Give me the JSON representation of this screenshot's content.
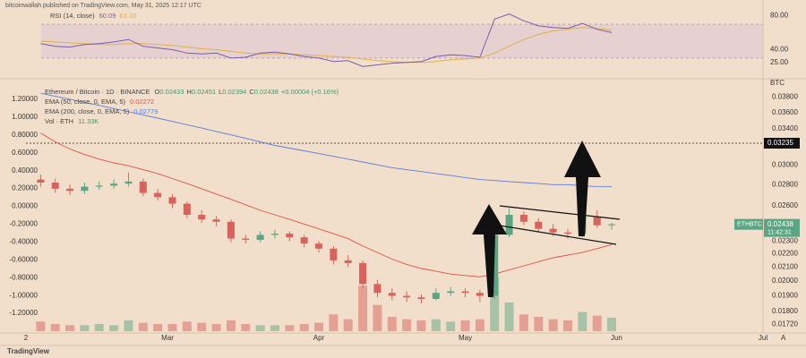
{
  "chart_data": {
    "type": "candlestick",
    "header": "bitcoinwallah published on TradingView.com, May 31, 2025 12:17 UTC",
    "footer": "TradingView",
    "symbol": "Ethereum / Bitcoin · 1D · BINANCE",
    "ohlc_labels": [
      "O",
      "H",
      "L",
      "C"
    ],
    "change_label": "+0.00004 (+0.16%)",
    "currency": "BTC",
    "scale_mode": "A",
    "pair_label": "ETHBTC",
    "countdown": "11:42:31",
    "log_scale": true,
    "up_color": "#5aa583",
    "down_color": "#d9625c",
    "x": [
      0,
      3,
      6,
      9,
      12,
      15,
      18,
      21,
      24,
      27,
      30,
      33,
      36,
      39,
      42,
      45,
      48,
      51,
      54,
      57,
      60,
      63,
      66,
      69,
      72,
      75,
      78,
      81,
      84,
      87,
      90,
      93,
      96,
      99,
      102,
      105,
      108,
      111,
      114,
      117
    ],
    "xlim": [
      -3,
      148
    ],
    "xticks": [
      {
        "value": -3,
        "label": "2"
      },
      {
        "value": 26,
        "label": "Mar"
      },
      {
        "value": 57,
        "label": "Apr"
      },
      {
        "value": 87,
        "label": "May"
      },
      {
        "value": 118,
        "label": "Jun"
      },
      {
        "value": 148,
        "label": "Jul"
      }
    ],
    "candles": [
      [
        0.0285,
        0.029,
        0.0278,
        0.0282
      ],
      [
        0.0282,
        0.0286,
        0.0272,
        0.0276
      ],
      [
        0.0276,
        0.028,
        0.027,
        0.0274
      ],
      [
        0.0274,
        0.0282,
        0.0271,
        0.0278
      ],
      [
        0.0278,
        0.0283,
        0.0275,
        0.0279
      ],
      [
        0.0279,
        0.0285,
        0.0276,
        0.0281
      ],
      [
        0.0281,
        0.0292,
        0.0278,
        0.0283
      ],
      [
        0.0283,
        0.0286,
        0.0269,
        0.0272
      ],
      [
        0.0272,
        0.0276,
        0.0265,
        0.0268
      ],
      [
        0.0268,
        0.0271,
        0.0258,
        0.0262
      ],
      [
        0.0262,
        0.0264,
        0.0249,
        0.0252
      ],
      [
        0.0252,
        0.0256,
        0.0245,
        0.0248
      ],
      [
        0.0248,
        0.0251,
        0.0242,
        0.0246
      ],
      [
        0.0246,
        0.0248,
        0.0229,
        0.0232
      ],
      [
        0.0232,
        0.0235,
        0.0228,
        0.0231
      ],
      [
        0.0231,
        0.0238,
        0.0229,
        0.0235
      ],
      [
        0.0235,
        0.0239,
        0.0232,
        0.0236
      ],
      [
        0.0236,
        0.0238,
        0.023,
        0.0233
      ],
      [
        0.0233,
        0.0235,
        0.0225,
        0.0228
      ],
      [
        0.0228,
        0.023,
        0.0221,
        0.0224
      ],
      [
        0.0224,
        0.0226,
        0.0212,
        0.0215
      ],
      [
        0.0215,
        0.0219,
        0.021,
        0.0213
      ],
      [
        0.0213,
        0.0215,
        0.0195,
        0.0198
      ],
      [
        0.0198,
        0.0201,
        0.0189,
        0.0192
      ],
      [
        0.0192,
        0.0195,
        0.0187,
        0.019
      ],
      [
        0.019,
        0.0193,
        0.0186,
        0.0189
      ],
      [
        0.0189,
        0.0191,
        0.0185,
        0.0188
      ],
      [
        0.0188,
        0.0195,
        0.0187,
        0.0192
      ],
      [
        0.0192,
        0.0196,
        0.019,
        0.0193
      ],
      [
        0.0193,
        0.0195,
        0.0189,
        0.0192
      ],
      [
        0.0192,
        0.0194,
        0.0186,
        0.019
      ],
      [
        0.019,
        0.0238,
        0.0188,
        0.0235
      ],
      [
        0.0235,
        0.0258,
        0.0233,
        0.0252
      ],
      [
        0.0252,
        0.0255,
        0.0243,
        0.0246
      ],
      [
        0.0246,
        0.0249,
        0.0237,
        0.024
      ],
      [
        0.024,
        0.0244,
        0.0234,
        0.0237
      ],
      [
        0.0237,
        0.024,
        0.0232,
        0.0236
      ],
      [
        0.0236,
        0.0253,
        0.0233,
        0.025
      ],
      [
        0.025,
        0.0256,
        0.0241,
        0.0243
      ],
      [
        0.02433,
        0.02451,
        0.02394,
        0.02438
      ]
    ],
    "series": [
      {
        "name": "EMA (50, close, 0, EMA, 5)",
        "color": "#e0504a",
        "values": [
          0.0335,
          0.0325,
          0.0317,
          0.0311,
          0.0306,
          0.0302,
          0.0299,
          0.0295,
          0.0291,
          0.0286,
          0.0281,
          0.0276,
          0.0271,
          0.0266,
          0.0261,
          0.0256,
          0.0252,
          0.0248,
          0.0244,
          0.024,
          0.0236,
          0.0232,
          0.0226,
          0.0221,
          0.0216,
          0.0212,
          0.0209,
          0.0207,
          0.0205,
          0.0204,
          0.0203,
          0.0205,
          0.0208,
          0.0211,
          0.0214,
          0.0217,
          0.0219,
          0.0221,
          0.0224,
          0.02272
        ]
      },
      {
        "name": "EMA (200, close, 0, EMA, 5)",
        "color": "#5b7fd6",
        "values": [
          0.0385,
          0.0381,
          0.0377,
          0.0373,
          0.0369,
          0.0365,
          0.0361,
          0.0357,
          0.0353,
          0.0349,
          0.0345,
          0.0341,
          0.0337,
          0.0333,
          0.0329,
          0.0325,
          0.0321,
          0.0318,
          0.0315,
          0.0312,
          0.0309,
          0.0306,
          0.0303,
          0.03,
          0.0297,
          0.0295,
          0.0293,
          0.0291,
          0.0289,
          0.0287,
          0.0285,
          0.0284,
          0.0283,
          0.0282,
          0.0281,
          0.028,
          0.028,
          0.0279,
          0.0278,
          0.02779
        ]
      }
    ],
    "volume": {
      "name": "Vol · ETH",
      "color": "#3f9a6e",
      "vlim": [
        0,
        60
      ],
      "values": [
        8,
        6,
        5,
        5,
        6,
        5,
        9,
        7,
        6,
        6,
        8,
        7,
        6,
        9,
        6,
        5,
        5,
        5,
        6,
        7,
        14,
        10,
        38,
        22,
        12,
        10,
        9,
        10,
        8,
        9,
        10,
        45,
        24,
        14,
        12,
        10,
        9,
        16,
        13,
        11.33
      ],
      "value_labels": [
        null,
        null,
        null,
        null,
        null,
        null,
        null,
        null,
        null,
        null,
        null,
        null,
        null,
        null,
        null,
        null,
        null,
        null,
        null,
        null,
        null,
        null,
        null,
        null,
        null,
        null,
        null,
        null,
        null,
        null,
        null,
        null,
        null,
        null,
        null,
        null,
        null,
        null,
        null,
        "11.33K"
      ]
    },
    "ylim": [
      0.0168,
      0.0395
    ],
    "yticks": [
      {
        "value": 0.038,
        "label": "0.03800"
      },
      {
        "value": 0.036,
        "label": "0.03600"
      },
      {
        "value": 0.034,
        "label": "0.03400"
      },
      {
        "value": 0.03,
        "label": "0.03000"
      },
      {
        "value": 0.028,
        "label": "0.02800"
      },
      {
        "value": 0.026,
        "label": "0.02600"
      },
      {
        "value": 0.023,
        "label": "0.02300"
      },
      {
        "value": 0.022,
        "label": "0.02200"
      },
      {
        "value": 0.021,
        "label": "0.02100"
      },
      {
        "value": 0.02,
        "label": "0.02000"
      },
      {
        "value": 0.019,
        "label": "0.01900"
      },
      {
        "value": 0.018,
        "label": "0.01800"
      },
      {
        "value": 0.0172,
        "label": "0.01720"
      }
    ],
    "price_line": 0.03235,
    "left_axis": {
      "ylim": [
        -1.4,
        1.35
      ],
      "ticks": [
        {
          "value": 1.2,
          "label": "1.20000"
        },
        {
          "value": 1,
          "label": "1.00000"
        },
        {
          "value": 0.8,
          "label": "0.80000"
        },
        {
          "value": 0.6,
          "label": "0.60000"
        },
        {
          "value": 0.4,
          "label": "0.40000"
        },
        {
          "value": 0.2,
          "label": "0.20000"
        },
        {
          "value": 0,
          "label": "0.00000"
        },
        {
          "value": -0.2,
          "label": "-0.20000"
        },
        {
          "value": -0.4,
          "label": "-0.40000"
        },
        {
          "value": -0.6,
          "label": "-0.60000"
        },
        {
          "value": -0.8,
          "label": "-0.80000"
        },
        {
          "value": -1,
          "label": "-1.00000"
        },
        {
          "value": -1.2,
          "label": "-1.20000"
        }
      ]
    },
    "rsi": {
      "name": "RSI (14, close)",
      "color": "#7a5ca8",
      "ma_color": "#e2b04a",
      "ylim": [
        12,
        88
      ],
      "bands": [
        30,
        70
      ],
      "values": [
        47,
        44,
        43,
        46,
        47,
        49,
        52,
        44,
        42,
        40,
        36,
        35,
        36,
        30,
        31,
        36,
        37,
        35,
        32,
        30,
        26,
        27,
        20,
        22,
        24,
        25,
        26,
        32,
        34,
        33,
        31,
        76,
        82,
        74,
        68,
        66,
        65,
        71,
        64,
        60.09
      ],
      "ma": [
        50,
        49,
        48,
        47,
        46,
        46,
        47,
        47,
        46,
        45,
        43,
        41,
        40,
        38,
        36,
        35,
        35,
        35,
        34,
        33,
        32,
        31,
        29,
        27,
        26,
        25,
        25,
        26,
        28,
        29,
        30,
        36,
        44,
        52,
        58,
        62,
        64,
        66,
        65,
        63.1
      ],
      "ma_value_labels": [
        null,
        null,
        null,
        null,
        null,
        null,
        null,
        null,
        null,
        null,
        null,
        null,
        null,
        null,
        null,
        null,
        null,
        null,
        null,
        null,
        null,
        null,
        null,
        null,
        null,
        null,
        null,
        null,
        null,
        null,
        null,
        null,
        null,
        null,
        null,
        null,
        null,
        null,
        null,
        "63.10"
      ],
      "yticks": [
        {
          "value": 80,
          "label": "80.00"
        },
        {
          "value": 40,
          "label": "40.00"
        },
        {
          "value": 25,
          "label": "25.00"
        }
      ]
    }
  }
}
